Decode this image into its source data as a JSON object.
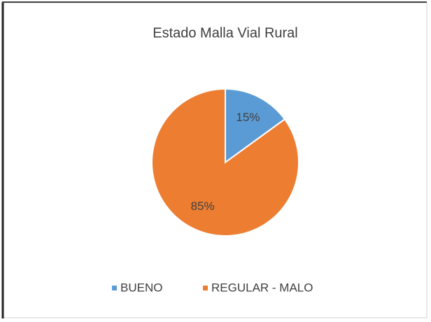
{
  "chart_data": {
    "type": "pie",
    "title": "Estado Malla Vial Rural",
    "categories": [
      "BUENO",
      "REGULAR - MALO"
    ],
    "values": [
      15,
      85
    ],
    "value_labels": [
      "15%",
      "85%"
    ],
    "colors": [
      "#5b9bd5",
      "#ed7d31"
    ],
    "legend": "bottom"
  }
}
